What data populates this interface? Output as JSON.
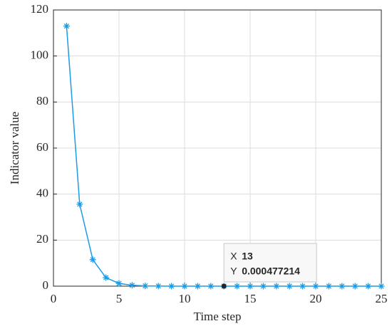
{
  "chart_data": {
    "type": "line",
    "xlabel": "Time step",
    "ylabel": "Indicator value",
    "x": [
      1,
      2,
      3,
      4,
      5,
      6,
      7,
      8,
      9,
      10,
      11,
      12,
      13,
      14,
      15,
      16,
      17,
      18,
      19,
      20,
      21,
      22,
      23,
      24,
      25
    ],
    "series": [
      {
        "name": "Indicator value",
        "color": "#1a9be8",
        "values": [
          113,
          35.6,
          11.5,
          3.7,
          1.2,
          0.38,
          0.12,
          0.04,
          0.013,
          0.0046,
          0.0015,
          0.0015,
          0.000477214,
          0.00015,
          5e-05,
          1.6e-05,
          5e-06,
          1.6e-06,
          5e-07,
          1.6e-07,
          5e-08,
          1.6e-08,
          5e-09,
          1.6e-09,
          5e-10
        ]
      }
    ],
    "xlim": [
      0,
      25
    ],
    "xticks": [
      0,
      5,
      10,
      15,
      20,
      25
    ],
    "ylim": [
      0,
      120
    ],
    "yticks": [
      0,
      20,
      40,
      60,
      80,
      100,
      120
    ],
    "grid": true,
    "datatip": {
      "x_label": "X",
      "x": 13,
      "y_label": "Y",
      "y": 0.000477214
    }
  }
}
